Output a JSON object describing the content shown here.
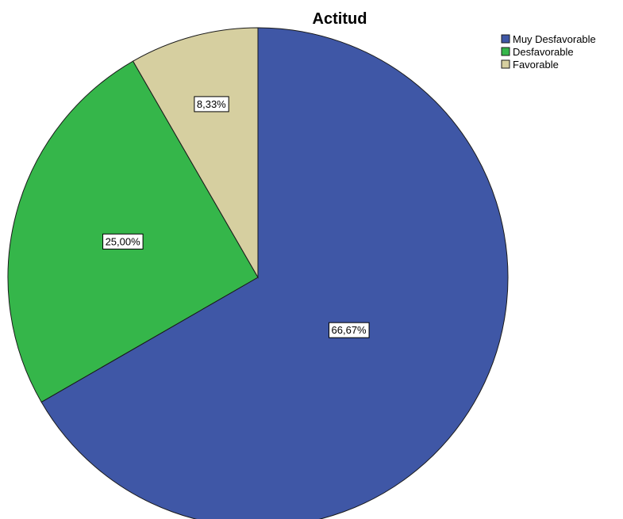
{
  "chart_data": {
    "type": "pie",
    "title": "Actitud",
    "categories": [
      "Muy Desfavorable",
      "Desfavorable",
      "Favorable"
    ],
    "values": [
      66.67,
      25.0,
      8.33
    ],
    "labels": [
      "66,67%",
      "25,00%",
      "8,33%"
    ],
    "colors": [
      "#3f57a6",
      "#35b64a",
      "#d6cfa0"
    ],
    "legend_placement": "top-right"
  }
}
